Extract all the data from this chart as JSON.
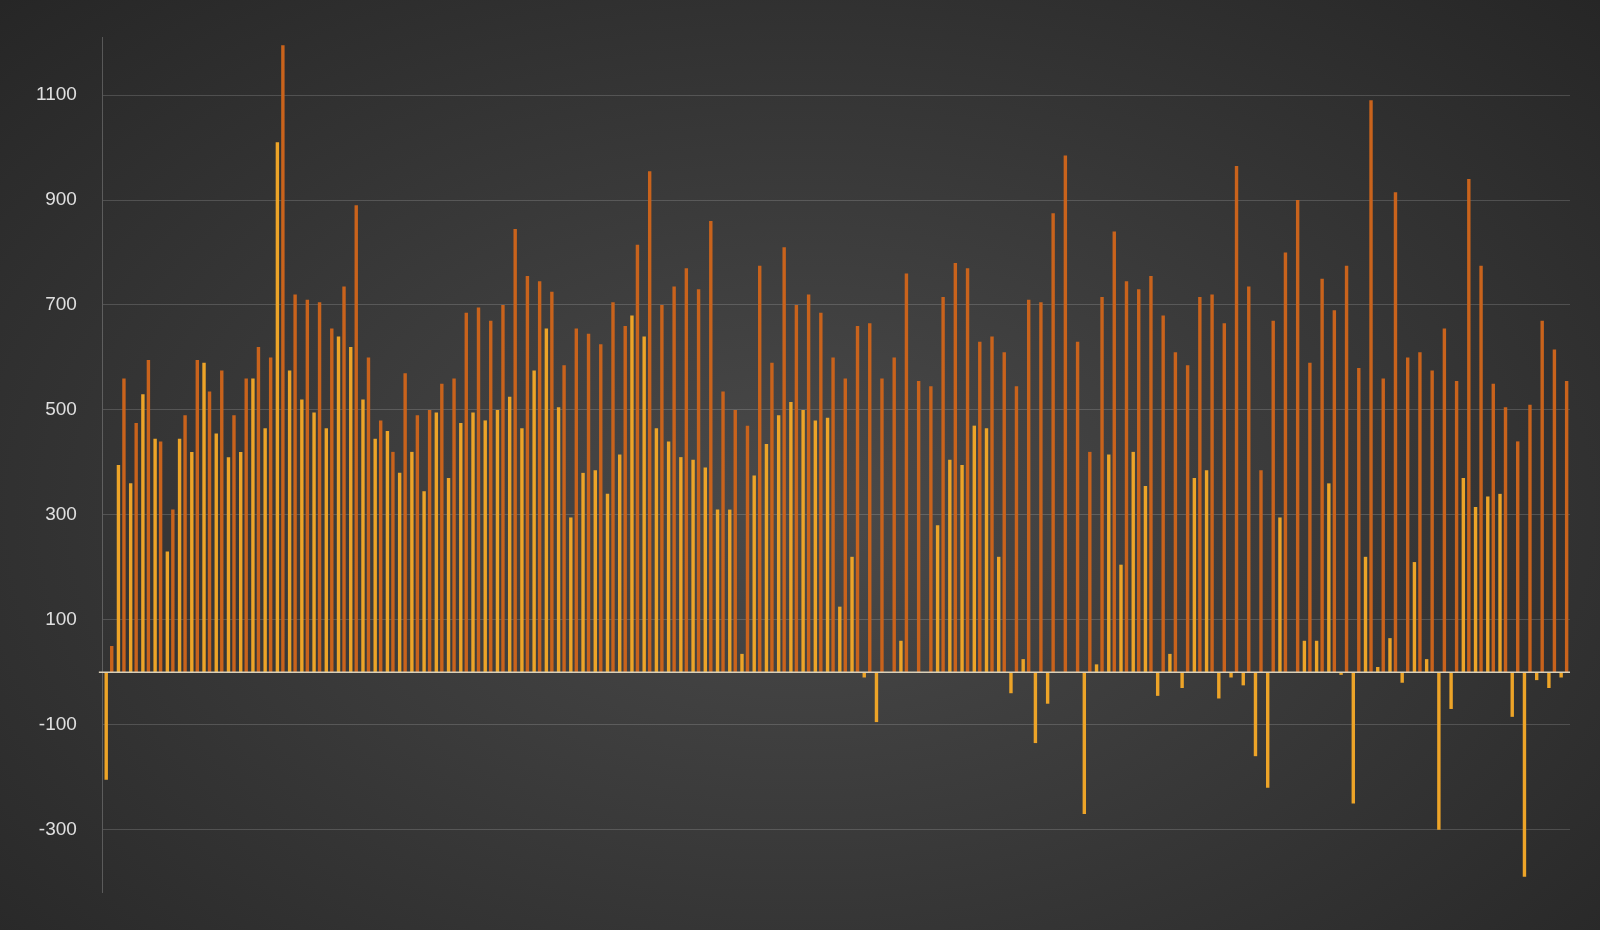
{
  "chart_data": {
    "type": "bar",
    "categories": [
      null,
      null,
      null,
      null,
      null,
      null,
      null,
      null,
      null,
      null,
      null,
      null,
      null,
      null,
      null,
      null,
      null,
      null,
      null,
      null,
      null,
      null,
      null,
      null,
      null,
      null,
      null,
      null,
      null,
      null,
      null,
      null,
      null,
      null,
      null,
      null,
      null,
      null,
      null,
      null,
      null,
      null,
      null,
      null,
      null,
      null,
      null,
      null,
      null,
      null,
      null,
      null,
      null,
      null,
      null,
      null,
      null,
      null,
      null,
      null,
      null,
      null,
      null,
      null,
      null,
      null,
      null,
      null,
      null,
      null,
      null,
      null,
      null,
      null,
      null,
      null,
      null,
      null,
      null,
      null,
      null,
      null,
      null,
      null,
      null,
      null,
      null,
      null,
      null,
      null,
      null,
      null,
      null,
      null,
      null,
      null,
      null,
      null,
      null,
      null,
      null,
      null,
      null,
      null,
      null,
      null,
      null,
      null,
      null,
      null,
      null,
      null,
      null,
      null,
      null,
      null,
      null,
      null,
      null,
      null
    ],
    "series": [
      {
        "color": "#eda428",
        "values": [
          -205,
          395,
          360,
          530,
          445,
          230,
          445,
          420,
          590,
          455,
          410,
          420,
          560,
          465,
          1010,
          575,
          520,
          495,
          465,
          640,
          620,
          520,
          445,
          460,
          380,
          420,
          345,
          495,
          370,
          475,
          495,
          480,
          500,
          525,
          465,
          575,
          655,
          505,
          295,
          380,
          385,
          340,
          415,
          680,
          640,
          465,
          440,
          410,
          405,
          390,
          310,
          310,
          35,
          375,
          435,
          490,
          515,
          500,
          480,
          485,
          125,
          220,
          -10,
          -95,
          null,
          60,
          0,
          0,
          280,
          405,
          395,
          470,
          465,
          220,
          -40,
          25,
          -135,
          -60,
          0,
          0,
          -270,
          15,
          415,
          205,
          420,
          355,
          -45,
          35,
          -30,
          370,
          385,
          -50,
          -10,
          -25,
          -160,
          -220,
          295,
          0,
          60,
          60,
          360,
          -5,
          -250,
          220,
          10,
          65,
          -20,
          210,
          25,
          -300,
          -70,
          370,
          315,
          335,
          340,
          -85,
          -390,
          -15,
          -30,
          -10
        ]
      },
      {
        "color": "#c9631c",
        "values": [
          50,
          560,
          475,
          595,
          440,
          310,
          490,
          595,
          535,
          575,
          490,
          560,
          620,
          600,
          1195,
          720,
          710,
          705,
          655,
          735,
          890,
          600,
          480,
          420,
          570,
          490,
          500,
          550,
          560,
          685,
          695,
          670,
          700,
          845,
          755,
          745,
          725,
          585,
          655,
          645,
          625,
          705,
          660,
          815,
          955,
          700,
          735,
          770,
          730,
          860,
          535,
          500,
          470,
          775,
          590,
          810,
          700,
          720,
          685,
          600,
          560,
          660,
          665,
          560,
          600,
          760,
          555,
          545,
          715,
          780,
          770,
          630,
          640,
          610,
          545,
          710,
          705,
          875,
          985,
          630,
          420,
          715,
          840,
          745,
          730,
          755,
          680,
          610,
          585,
          715,
          720,
          665,
          965,
          735,
          385,
          670,
          800,
          900,
          590,
          750,
          690,
          775,
          580,
          1090,
          560,
          915,
          600,
          610,
          575,
          655,
          555,
          940,
          775,
          550,
          505,
          440,
          510,
          670,
          615,
          555
        ]
      }
    ],
    "ylim": [
      -420,
      1210
    ],
    "yticks": [
      -300,
      -100,
      100,
      300,
      500,
      700,
      900,
      1100
    ],
    "grid": "y",
    "tick_labels": "y"
  }
}
